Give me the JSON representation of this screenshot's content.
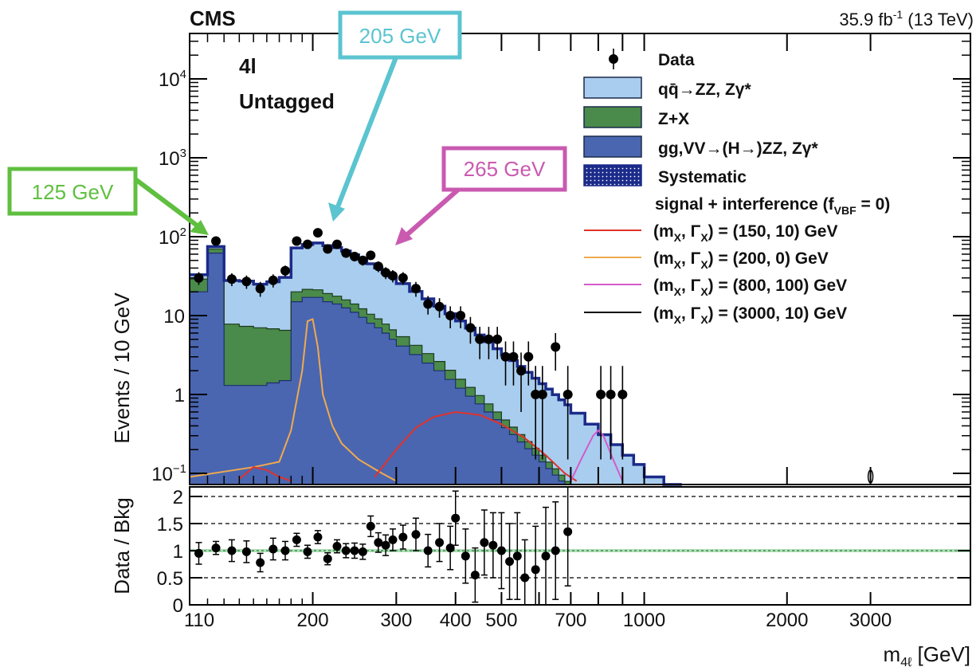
{
  "header": {
    "experiment": "CMS",
    "lumi_prefix": "35.9 fb",
    "lumi_sup": "-1",
    "lumi_suffix": " (13 TeV)"
  },
  "category": {
    "channel": "4l",
    "tag": "Untagged"
  },
  "callouts": [
    {
      "text": "125 GeV",
      "color": "#5fbf3f",
      "mass": 125
    },
    {
      "text": "205 GeV",
      "color": "#5bc4d0",
      "mass": 205
    },
    {
      "text": "265 GeV",
      "color": "#c95ab0",
      "mass": 265
    }
  ],
  "legend": {
    "entries": [
      {
        "label": "Data",
        "kind": "marker"
      },
      {
        "label": "qq̄→ZZ, Zγ*",
        "kind": "fill",
        "color": "#a9cdee"
      },
      {
        "label": "Z+X",
        "kind": "fill",
        "color": "#4a8a4a"
      },
      {
        "label": "gg,VV→(H→)ZZ, Zγ*",
        "kind": "fill",
        "color": "#4a66b0"
      },
      {
        "label": "Systematic",
        "kind": "hatch",
        "color": "#1b2b8a"
      }
    ],
    "signal_header_main": "signal + interference (f",
    "signal_header_sub": "VBF",
    "signal_header_end": " = 0)",
    "signals": [
      {
        "m": "150",
        "g": "10",
        "color": "#e0322b"
      },
      {
        "m": "200",
        "g": "0",
        "color": "#f0a94e"
      },
      {
        "m": "800",
        "g": "100",
        "color": "#d45acb"
      },
      {
        "m": "3000",
        "g": "10",
        "color": "#000000"
      }
    ]
  },
  "chart_data": [
    {
      "type": "bar",
      "stacked": true,
      "yscale": "log",
      "ylabel": "Events / 10 GeV",
      "ylim": [
        0.08,
        30000
      ],
      "xlim": [
        110,
        3500
      ],
      "xscale": "log",
      "yticks": [
        {
          "v": 0.1,
          "b": "10",
          "e": "−1"
        },
        {
          "v": 1,
          "b": "1",
          "e": ""
        },
        {
          "v": 10,
          "b": "10",
          "e": ""
        },
        {
          "v": 100,
          "b": "10",
          "e": "2"
        },
        {
          "v": 1000,
          "b": "10",
          "e": "3"
        },
        {
          "v": 10000,
          "b": "10",
          "e": "4"
        }
      ],
      "bins": [
        {
          "lo": 110,
          "hi": 120,
          "gg": 20,
          "zx": 9,
          "qq": 4
        },
        {
          "lo": 120,
          "hi": 130,
          "gg": 62,
          "zx": 8,
          "qq": 5
        },
        {
          "lo": 130,
          "hi": 140,
          "gg": 1.3,
          "zx": 6.5,
          "qq": 20
        },
        {
          "lo": 140,
          "hi": 150,
          "gg": 1.3,
          "zx": 6,
          "qq": 20
        },
        {
          "lo": 150,
          "hi": 160,
          "gg": 1.3,
          "zx": 5.7,
          "qq": 18
        },
        {
          "lo": 160,
          "hi": 170,
          "gg": 1.4,
          "zx": 5.4,
          "qq": 20
        },
        {
          "lo": 170,
          "hi": 180,
          "gg": 1.5,
          "zx": 5,
          "qq": 24
        },
        {
          "lo": 180,
          "hi": 190,
          "gg": 15,
          "zx": 5,
          "qq": 52
        },
        {
          "lo": 190,
          "hi": 200,
          "gg": 17,
          "zx": 4.5,
          "qq": 58
        },
        {
          "lo": 200,
          "hi": 210,
          "gg": 17,
          "zx": 4.2,
          "qq": 62
        },
        {
          "lo": 210,
          "hi": 220,
          "gg": 15,
          "zx": 4,
          "qq": 58
        },
        {
          "lo": 220,
          "hi": 230,
          "gg": 14,
          "zx": 3.6,
          "qq": 55
        },
        {
          "lo": 230,
          "hi": 240,
          "gg": 12.5,
          "zx": 3.3,
          "qq": 50
        },
        {
          "lo": 240,
          "hi": 250,
          "gg": 11,
          "zx": 3,
          "qq": 45
        },
        {
          "lo": 250,
          "hi": 260,
          "gg": 9.5,
          "zx": 2.7,
          "qq": 40
        },
        {
          "lo": 260,
          "hi": 270,
          "gg": 8,
          "zx": 2.4,
          "qq": 35
        },
        {
          "lo": 270,
          "hi": 280,
          "gg": 7,
          "zx": 2.1,
          "qq": 31
        },
        {
          "lo": 280,
          "hi": 290,
          "gg": 6,
          "zx": 1.8,
          "qq": 27
        },
        {
          "lo": 290,
          "hi": 300,
          "gg": 5,
          "zx": 1.6,
          "qq": 24
        },
        {
          "lo": 300,
          "hi": 320,
          "gg": 4.1,
          "zx": 1.3,
          "qq": 20
        },
        {
          "lo": 320,
          "hi": 340,
          "gg": 3.2,
          "zx": 1,
          "qq": 16
        },
        {
          "lo": 340,
          "hi": 360,
          "gg": 2.5,
          "zx": 0.8,
          "qq": 13
        },
        {
          "lo": 360,
          "hi": 380,
          "gg": 2,
          "zx": 0.62,
          "qq": 10.5
        },
        {
          "lo": 380,
          "hi": 400,
          "gg": 1.55,
          "zx": 0.48,
          "qq": 8.5
        },
        {
          "lo": 400,
          "hi": 420,
          "gg": 1.2,
          "zx": 0.36,
          "qq": 7
        },
        {
          "lo": 420,
          "hi": 440,
          "gg": 0.95,
          "zx": 0.28,
          "qq": 5.7
        },
        {
          "lo": 440,
          "hi": 460,
          "gg": 0.76,
          "zx": 0.21,
          "qq": 4.7
        },
        {
          "lo": 460,
          "hi": 480,
          "gg": 0.6,
          "zx": 0.16,
          "qq": 3.9
        },
        {
          "lo": 480,
          "hi": 500,
          "gg": 0.48,
          "zx": 0.12,
          "qq": 3.2
        },
        {
          "lo": 500,
          "hi": 520,
          "gg": 0.38,
          "zx": 0.095,
          "qq": 2.7
        },
        {
          "lo": 520,
          "hi": 540,
          "gg": 0.31,
          "zx": 0.075,
          "qq": 2.3
        },
        {
          "lo": 540,
          "hi": 560,
          "gg": 0.25,
          "zx": 0.06,
          "qq": 1.95
        },
        {
          "lo": 560,
          "hi": 580,
          "gg": 0.205,
          "zx": 0.048,
          "qq": 1.65
        },
        {
          "lo": 580,
          "hi": 600,
          "gg": 0.17,
          "zx": 0.038,
          "qq": 1.4
        },
        {
          "lo": 600,
          "hi": 620,
          "gg": 0.14,
          "zx": 0.03,
          "qq": 1.2
        },
        {
          "lo": 620,
          "hi": 640,
          "gg": 0.115,
          "zx": 0.024,
          "qq": 1.03
        },
        {
          "lo": 640,
          "hi": 660,
          "gg": 0.095,
          "zx": 0.019,
          "qq": 0.88
        },
        {
          "lo": 660,
          "hi": 680,
          "gg": 0.08,
          "zx": 0.015,
          "qq": 0.76
        },
        {
          "lo": 680,
          "hi": 700,
          "gg": 0.067,
          "zx": 0.012,
          "qq": 0.66
        },
        {
          "lo": 700,
          "hi": 750,
          "gg": 0.05,
          "zx": 0.009,
          "qq": 0.52
        },
        {
          "lo": 750,
          "hi": 800,
          "gg": 0.035,
          "zx": 0.006,
          "qq": 0.38
        },
        {
          "lo": 800,
          "hi": 850,
          "gg": 0.025,
          "zx": 0.004,
          "qq": 0.28
        },
        {
          "lo": 850,
          "hi": 900,
          "gg": 0.018,
          "zx": 0.003,
          "qq": 0.21
        },
        {
          "lo": 900,
          "hi": 950,
          "gg": 0.013,
          "zx": 0.002,
          "qq": 0.155
        },
        {
          "lo": 950,
          "hi": 1000,
          "gg": 0.01,
          "zx": 0.0015,
          "qq": 0.118
        },
        {
          "lo": 1000,
          "hi": 1100,
          "gg": 0.007,
          "zx": 0.001,
          "qq": 0.082
        },
        {
          "lo": 1100,
          "hi": 1200,
          "gg": 0.005,
          "zx": 0.0007,
          "qq": 0.05
        }
      ],
      "data_points": [
        {
          "x": 115,
          "y": 30,
          "lo": 24.5,
          "hi": 35.5
        },
        {
          "x": 125,
          "y": 88,
          "lo": 79,
          "hi": 97
        },
        {
          "x": 135,
          "y": 29,
          "lo": 23.6,
          "hi": 34.4
        },
        {
          "x": 145,
          "y": 27,
          "lo": 21.8,
          "hi": 32.2
        },
        {
          "x": 155,
          "y": 22,
          "lo": 17.3,
          "hi": 26.7
        },
        {
          "x": 165,
          "y": 28,
          "lo": 22.7,
          "hi": 33.3
        },
        {
          "x": 175,
          "y": 37,
          "lo": 31,
          "hi": 43
        },
        {
          "x": 185,
          "y": 88,
          "lo": 79,
          "hi": 97
        },
        {
          "x": 195,
          "y": 80,
          "lo": 71,
          "hi": 89
        },
        {
          "x": 205,
          "y": 112,
          "lo": 101,
          "hi": 123
        },
        {
          "x": 215,
          "y": 70,
          "lo": 62,
          "hi": 78
        },
        {
          "x": 225,
          "y": 80,
          "lo": 71,
          "hi": 89
        },
        {
          "x": 235,
          "y": 62,
          "lo": 54,
          "hi": 70
        },
        {
          "x": 245,
          "y": 56,
          "lo": 48.5,
          "hi": 63.5
        },
        {
          "x": 255,
          "y": 50,
          "lo": 43,
          "hi": 57
        },
        {
          "x": 265,
          "y": 58,
          "lo": 50.4,
          "hi": 65.6
        },
        {
          "x": 275,
          "y": 42,
          "lo": 35.5,
          "hi": 48.5
        },
        {
          "x": 285,
          "y": 35,
          "lo": 29,
          "hi": 41
        },
        {
          "x": 295,
          "y": 32,
          "lo": 26.3,
          "hi": 37.7
        },
        {
          "x": 310,
          "y": 30,
          "lo": 24.5,
          "hi": 35.5
        },
        {
          "x": 330,
          "y": 22,
          "lo": 17.3,
          "hi": 26.7
        },
        {
          "x": 350,
          "y": 14,
          "lo": 10.3,
          "hi": 17.7
        },
        {
          "x": 370,
          "y": 13,
          "lo": 9.4,
          "hi": 16.6
        },
        {
          "x": 390,
          "y": 10,
          "lo": 6.9,
          "hi": 13.1
        },
        {
          "x": 410,
          "y": 10,
          "lo": 6.9,
          "hi": 13.1
        },
        {
          "x": 430,
          "y": 7,
          "lo": 4.4,
          "hi": 9.6
        },
        {
          "x": 450,
          "y": 5,
          "lo": 2.8,
          "hi": 7.2
        },
        {
          "x": 470,
          "y": 5,
          "lo": 2.8,
          "hi": 7.2
        },
        {
          "x": 490,
          "y": 5,
          "lo": 2.8,
          "hi": 7.2
        },
        {
          "x": 510,
          "y": 3,
          "lo": 1.3,
          "hi": 4.7
        },
        {
          "x": 530,
          "y": 3,
          "lo": 1.3,
          "hi": 4.7
        },
        {
          "x": 550,
          "y": 2,
          "lo": 0.6,
          "hi": 3.4
        },
        {
          "x": 570,
          "y": 3,
          "lo": 1.3,
          "hi": 4.7
        },
        {
          "x": 590,
          "y": 1,
          "lo": 0.15,
          "hi": 2.3
        },
        {
          "x": 610,
          "y": 1,
          "lo": 0.15,
          "hi": 2.3
        },
        {
          "x": 650,
          "y": 4,
          "lo": 2,
          "hi": 6
        },
        {
          "x": 690,
          "y": 1,
          "lo": 0.15,
          "hi": 2.3
        },
        {
          "x": 810,
          "y": 1,
          "lo": 0.15,
          "hi": 2.3
        },
        {
          "x": 850,
          "y": 1,
          "lo": 0.15,
          "hi": 2.3
        },
        {
          "x": 900,
          "y": 1,
          "lo": 0.15,
          "hi": 2.3
        }
      ],
      "signal_curves": [
        {
          "color": "#f0a94e",
          "label": "(200, 0)",
          "points": [
            [
              110,
              0.09
            ],
            [
              150,
              0.12
            ],
            [
              170,
              0.14
            ],
            [
              180,
              0.35
            ],
            [
              190,
              2
            ],
            [
              195,
              8.5
            ],
            [
              200,
              9
            ],
            [
              205,
              4
            ],
            [
              210,
              1
            ],
            [
              220,
              0.4
            ],
            [
              230,
              0.24
            ],
            [
              250,
              0.15
            ],
            [
              280,
              0.1
            ],
            [
              300,
              0.08
            ]
          ]
        },
        {
          "color": "#e0322b",
          "label": "(150, 10)",
          "points": [
            [
              140,
              0.085
            ],
            [
              150,
              0.12
            ],
            [
              160,
              0.11
            ],
            [
              170,
              0.09
            ],
            [
              180,
              0.08
            ]
          ]
        },
        {
          "color": "#e0322b",
          "label": "interference",
          "points": [
            [
              270,
              0.09
            ],
            [
              300,
              0.2
            ],
            [
              330,
              0.38
            ],
            [
              360,
              0.52
            ],
            [
              400,
              0.6
            ],
            [
              450,
              0.55
            ],
            [
              500,
              0.42
            ],
            [
              560,
              0.28
            ],
            [
              620,
              0.17
            ],
            [
              680,
              0.1
            ],
            [
              720,
              0.08
            ]
          ]
        },
        {
          "color": "#d45acb",
          "label": "(800, 100)",
          "points": [
            [
              700,
              0.08
            ],
            [
              740,
              0.16
            ],
            [
              780,
              0.3
            ],
            [
              800,
              0.35
            ],
            [
              820,
              0.3
            ],
            [
              860,
              0.15
            ],
            [
              900,
              0.08
            ]
          ]
        }
      ]
    },
    {
      "type": "scatter",
      "ylabel": "Data / Bkg",
      "xlabel_main": "m",
      "xlabel_sub": "4ℓ",
      "xlabel_unit": " [GeV]",
      "ylim": [
        0,
        2.1
      ],
      "yticks": [
        "0",
        "0.5",
        "1",
        "1.5",
        "2"
      ],
      "xticks": [
        "110",
        "200",
        "300",
        "400",
        "500",
        "700",
        "1000",
        "2000",
        "3000"
      ],
      "reference_lines": [
        0.5,
        1.5,
        2
      ],
      "points": [
        {
          "x": 115,
          "y": 0.95,
          "e": 0.2
        },
        {
          "x": 125,
          "y": 1.05,
          "e": 0.12
        },
        {
          "x": 135,
          "y": 1.0,
          "e": 0.2
        },
        {
          "x": 145,
          "y": 0.98,
          "e": 0.2
        },
        {
          "x": 155,
          "y": 0.78,
          "e": 0.17
        },
        {
          "x": 165,
          "y": 1.03,
          "e": 0.2
        },
        {
          "x": 175,
          "y": 1.0,
          "e": 0.17
        },
        {
          "x": 185,
          "y": 1.2,
          "e": 0.12
        },
        {
          "x": 195,
          "y": 0.98,
          "e": 0.12
        },
        {
          "x": 205,
          "y": 1.25,
          "e": 0.12
        },
        {
          "x": 215,
          "y": 0.85,
          "e": 0.11
        },
        {
          "x": 225,
          "y": 1.08,
          "e": 0.12
        },
        {
          "x": 235,
          "y": 1.0,
          "e": 0.13
        },
        {
          "x": 245,
          "y": 1.0,
          "e": 0.14
        },
        {
          "x": 255,
          "y": 0.98,
          "e": 0.14
        },
        {
          "x": 265,
          "y": 1.45,
          "e": 0.19
        },
        {
          "x": 275,
          "y": 1.15,
          "e": 0.18
        },
        {
          "x": 285,
          "y": 1.1,
          "e": 0.19
        },
        {
          "x": 295,
          "y": 1.2,
          "e": 0.2
        },
        {
          "x": 310,
          "y": 1.25,
          "e": 0.22
        },
        {
          "x": 330,
          "y": 1.3,
          "e": 0.3
        },
        {
          "x": 350,
          "y": 1.0,
          "e": 0.3
        },
        {
          "x": 370,
          "y": 1.15,
          "e": 0.35
        },
        {
          "x": 390,
          "y": 1.05,
          "e": 0.4
        },
        {
          "x": 400,
          "y": 1.6,
          "e": 0.5
        },
        {
          "x": 420,
          "y": 0.9,
          "e": 0.5
        },
        {
          "x": 440,
          "y": 0.55,
          "e": 0.5
        },
        {
          "x": 460,
          "y": 1.15,
          "e": 0.6
        },
        {
          "x": 480,
          "y": 1.1,
          "e": 0.6
        },
        {
          "x": 500,
          "y": 1.0,
          "e": 0.7
        },
        {
          "x": 520,
          "y": 0.8,
          "e": 0.7
        },
        {
          "x": 540,
          "y": 0.9,
          "e": 0.8
        },
        {
          "x": 560,
          "y": 0.5,
          "e": 0.7
        },
        {
          "x": 590,
          "y": 0.65,
          "e": 0.8
        },
        {
          "x": 620,
          "y": 0.9,
          "e": 0.9
        },
        {
          "x": 650,
          "y": 1.0,
          "e": 0.9
        },
        {
          "x": 690,
          "y": 1.35,
          "e": 1.0
        }
      ]
    }
  ]
}
